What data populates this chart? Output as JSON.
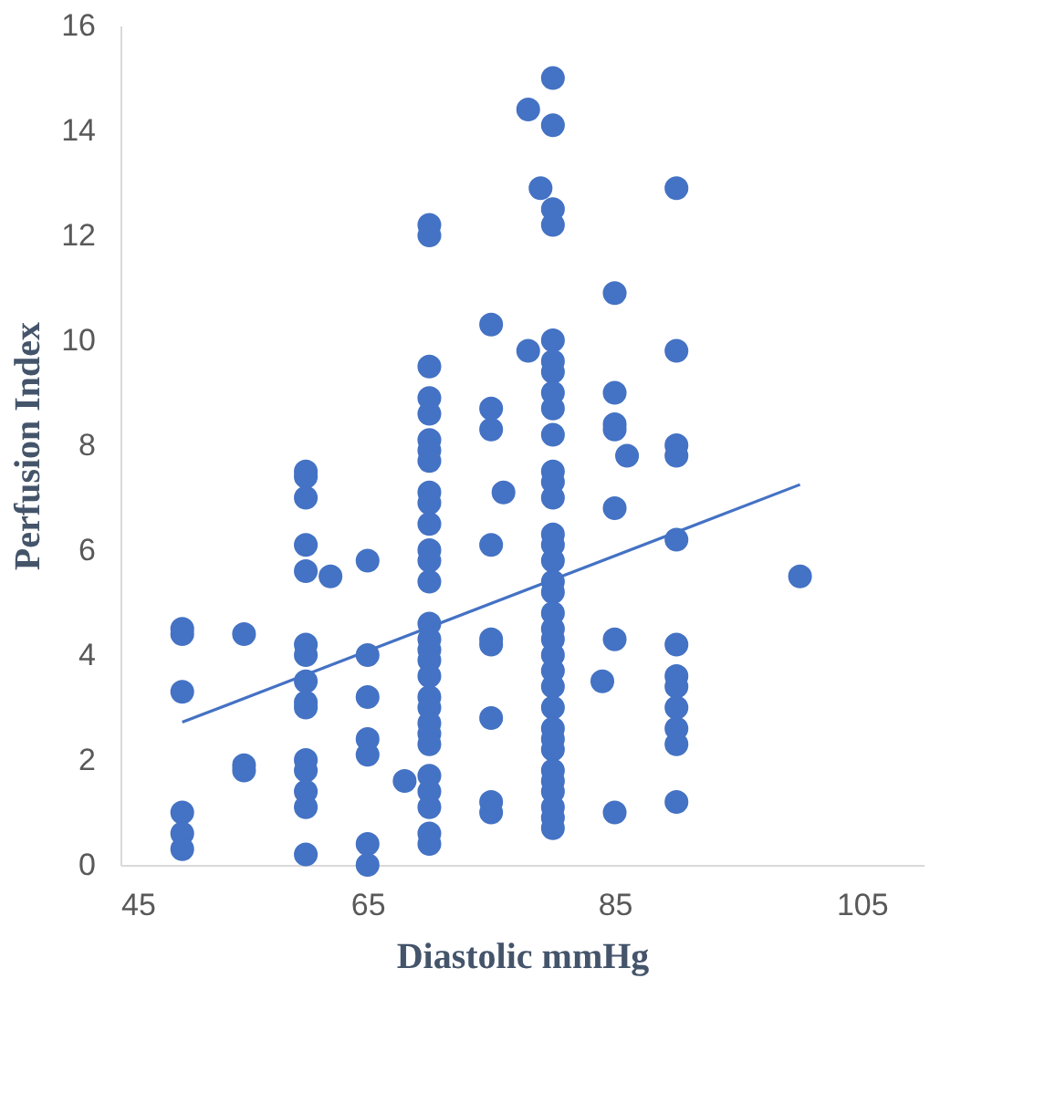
{
  "chart_data": {
    "type": "scatter",
    "xlabel": "Diastolic mmHg",
    "ylabel": "Perfusion Index",
    "xlim": [
      45,
      110
    ],
    "xticks": [
      45,
      65,
      85,
      105
    ],
    "ylim": [
      0,
      16
    ],
    "yticks": [
      0,
      2,
      4,
      6,
      8,
      10,
      12,
      14,
      16
    ],
    "grid": false,
    "series": [
      {
        "color": "#4472c4",
        "marker": "circle",
        "x": [
          50,
          50,
          50,
          50,
          50,
          50,
          55,
          55,
          55,
          60,
          60,
          60,
          60,
          60,
          60,
          60,
          60,
          60,
          60,
          60,
          60,
          60,
          60,
          60,
          62,
          65,
          65,
          65,
          65,
          65,
          65,
          65,
          68,
          70,
          70,
          70,
          70,
          70,
          70,
          70,
          70,
          70,
          70,
          70,
          70,
          70,
          70,
          70,
          70,
          70,
          70,
          70,
          70,
          70,
          70,
          70,
          70,
          70,
          70,
          70,
          70,
          70,
          75,
          75,
          75,
          75,
          75,
          75,
          75,
          75,
          75,
          76,
          78,
          78,
          79,
          80,
          80,
          80,
          80,
          80,
          80,
          80,
          80,
          80,
          80,
          80,
          80,
          80,
          80,
          80,
          80,
          80,
          80,
          80,
          80,
          80,
          80,
          80,
          80,
          80,
          80,
          80,
          80,
          80,
          80,
          80,
          80,
          80,
          80,
          84,
          85,
          85,
          85,
          85,
          85,
          85,
          85,
          86,
          90,
          90,
          90,
          90,
          90,
          90,
          90,
          90,
          90,
          90,
          90,
          90,
          100
        ],
        "values": [
          4.5,
          4.4,
          3.3,
          1.0,
          0.6,
          0.3,
          4.4,
          1.9,
          1.8,
          7.5,
          7.4,
          7.0,
          6.1,
          5.6,
          4.2,
          4.0,
          3.5,
          3.1,
          3.0,
          2.0,
          1.8,
          1.4,
          1.1,
          0.2,
          5.5,
          5.8,
          4.0,
          3.2,
          2.4,
          2.1,
          0.4,
          0.0,
          1.6,
          12.2,
          12.0,
          9.5,
          8.9,
          8.6,
          8.1,
          7.9,
          7.7,
          7.1,
          6.9,
          6.5,
          6.0,
          5.8,
          5.4,
          4.6,
          4.3,
          4.1,
          3.9,
          3.6,
          3.2,
          3.0,
          2.7,
          2.5,
          2.3,
          1.7,
          1.4,
          1.1,
          0.6,
          0.4,
          10.3,
          8.7,
          8.3,
          6.1,
          4.3,
          4.2,
          2.8,
          1.2,
          1.0,
          7.1,
          14.4,
          9.8,
          12.9,
          15.0,
          14.1,
          12.5,
          12.2,
          10.0,
          9.6,
          9.4,
          9.0,
          8.7,
          8.2,
          7.5,
          7.3,
          7.0,
          6.3,
          6.1,
          5.8,
          5.4,
          5.2,
          4.8,
          4.5,
          4.3,
          4.0,
          3.7,
          3.4,
          3.0,
          2.6,
          2.4,
          2.2,
          1.8,
          1.6,
          1.4,
          1.1,
          0.9,
          0.7,
          3.5,
          10.9,
          9.0,
          8.4,
          8.3,
          6.8,
          4.3,
          1.0,
          7.8,
          12.9,
          9.8,
          8.0,
          7.8,
          6.2,
          4.2,
          3.6,
          3.4,
          3.0,
          2.6,
          2.3,
          1.2,
          5.5
        ]
      },
      {
        "type": "line",
        "color": "#4472c4",
        "line_style": "solid",
        "x": [
          50,
          100
        ],
        "values": [
          2.72,
          7.25
        ]
      }
    ]
  }
}
